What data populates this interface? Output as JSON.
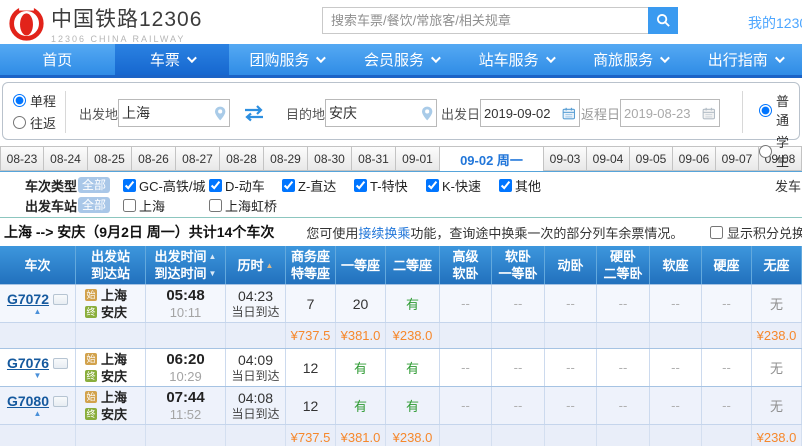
{
  "header": {
    "logo_title": "中国铁路12306",
    "logo_subtitle": "12306 CHINA RAILWAY",
    "search_placeholder": "搜索车票/餐饮/常旅客/相关规章",
    "my_account": "我的12306"
  },
  "nav": {
    "items": [
      {
        "label": "首页",
        "dropdown": false,
        "active": false
      },
      {
        "label": "车票",
        "dropdown": true,
        "active": true
      },
      {
        "label": "团购服务",
        "dropdown": true,
        "active": false
      },
      {
        "label": "会员服务",
        "dropdown": true,
        "active": false
      },
      {
        "label": "站车服务",
        "dropdown": true,
        "active": false
      },
      {
        "label": "商旅服务",
        "dropdown": true,
        "active": false
      },
      {
        "label": "出行指南",
        "dropdown": true,
        "active": false
      }
    ]
  },
  "form": {
    "trip_types": [
      {
        "label": "单程",
        "checked": true
      },
      {
        "label": "往返",
        "checked": false
      }
    ],
    "from_label": "出发地",
    "from_value": "上海",
    "to_label": "目的地",
    "to_value": "安庆",
    "depart_label": "出发日",
    "depart_value": "2019-09-02",
    "return_label": "返程日",
    "return_value": "2019-08-23",
    "ticket_types": [
      {
        "label": "普通",
        "checked": true
      },
      {
        "label": "学生",
        "checked": false
      }
    ]
  },
  "date_tabs": [
    {
      "label": "08-23",
      "active": false
    },
    {
      "label": "08-24",
      "active": false
    },
    {
      "label": "08-25",
      "active": false
    },
    {
      "label": "08-26",
      "active": false
    },
    {
      "label": "08-27",
      "active": false
    },
    {
      "label": "08-28",
      "active": false
    },
    {
      "label": "08-29",
      "active": false
    },
    {
      "label": "08-30",
      "active": false
    },
    {
      "label": "08-31",
      "active": false
    },
    {
      "label": "09-01",
      "active": false
    },
    {
      "label": "09-02 周一",
      "active": true
    },
    {
      "label": "09-03",
      "active": false
    },
    {
      "label": "09-04",
      "active": false
    },
    {
      "label": "09-05",
      "active": false
    },
    {
      "label": "09-06",
      "active": false
    },
    {
      "label": "09-07",
      "active": false
    },
    {
      "label": "09-08",
      "active": false
    }
  ],
  "filters": [
    {
      "label": "车次类型",
      "all": "全部",
      "right_text": "发车",
      "options": [
        {
          "label": "GC-高铁/城",
          "checked": true
        },
        {
          "label": "D-动车",
          "checked": true
        },
        {
          "label": "Z-直达",
          "checked": true
        },
        {
          "label": "T-特快",
          "checked": true
        },
        {
          "label": "K-快速",
          "checked": true
        },
        {
          "label": "其他",
          "checked": true
        }
      ]
    },
    {
      "label": "出发车站",
      "all": "全部",
      "right_text": "",
      "options": [
        {
          "label": "上海",
          "checked": false
        },
        {
          "label": "上海虹桥",
          "checked": false
        }
      ]
    }
  ],
  "summary": {
    "route_text": "上海 --> 安庆（9月2日  周一）共计14个车次",
    "tip_before": "您可使用",
    "tip_link": "接续换乘",
    "tip_after": "功能，查询途中换乘一次的部分列车余票情况。",
    "points_label": "显示积分兑换车次"
  },
  "table": {
    "badge_start": "始",
    "badge_end": "终",
    "columns": [
      {
        "l1": "车次",
        "l2": "",
        "sort1": "",
        "sort2": ""
      },
      {
        "l1": "出发站",
        "l2": "到达站",
        "sort1": "",
        "sort2": ""
      },
      {
        "l1": "出发时间",
        "l2": "到达时间",
        "sort1": "▲",
        "sort2": "▼"
      },
      {
        "l1": "历时",
        "l2": "",
        "sort1": "▲",
        "sort2": ""
      },
      {
        "l1": "商务座",
        "l2": "特等座",
        "sort1": "",
        "sort2": ""
      },
      {
        "l1": "一等座",
        "l2": "",
        "sort1": "",
        "sort2": ""
      },
      {
        "l1": "二等座",
        "l2": "",
        "sort1": "",
        "sort2": ""
      },
      {
        "l1": "高级",
        "l2": "软卧",
        "sort1": "",
        "sort2": ""
      },
      {
        "l1": "软卧",
        "l2": "一等卧",
        "sort1": "",
        "sort2": ""
      },
      {
        "l1": "动卧",
        "l2": "",
        "sort1": "",
        "sort2": ""
      },
      {
        "l1": "硬卧",
        "l2": "二等卧",
        "sort1": "",
        "sort2": ""
      },
      {
        "l1": "软座",
        "l2": "",
        "sort1": "",
        "sort2": ""
      },
      {
        "l1": "硬座",
        "l2": "",
        "sort1": "",
        "sort2": ""
      },
      {
        "l1": "无座",
        "l2": "",
        "sort1": "",
        "sort2": ""
      }
    ],
    "rows": [
      {
        "code": "G7072",
        "arrow": "up",
        "from": "上海",
        "to": "安庆",
        "dep": "05:48",
        "arr": "10:11",
        "dur": "04:23",
        "day": "当日到达",
        "seats": [
          "7",
          "20",
          "有",
          "--",
          "--",
          "--",
          "--",
          "--",
          "--",
          "无"
        ],
        "prices": [
          "¥737.5",
          "¥381.0",
          "¥238.0",
          "",
          "",
          "",
          "",
          "",
          "",
          "¥238.0"
        ]
      },
      {
        "code": "G7076",
        "arrow": "down",
        "from": "上海",
        "to": "安庆",
        "dep": "06:20",
        "arr": "10:29",
        "dur": "04:09",
        "day": "当日到达",
        "seats": [
          "12",
          "有",
          "有",
          "--",
          "--",
          "--",
          "--",
          "--",
          "--",
          "无"
        ],
        "prices": null
      },
      {
        "code": "G7080",
        "arrow": "up",
        "from": "上海",
        "to": "安庆",
        "dep": "07:44",
        "arr": "11:52",
        "dur": "04:08",
        "day": "当日到达",
        "seats": [
          "12",
          "有",
          "有",
          "--",
          "--",
          "--",
          "--",
          "--",
          "--",
          "无"
        ],
        "prices": [
          "¥737.5",
          "¥381.0",
          "¥238.0",
          "",
          "",
          "",
          "",
          "",
          "",
          "¥238.0"
        ]
      }
    ]
  },
  "colors": {
    "nav_blue": "#3e9bf0",
    "active_tab_blue": "#2176d9",
    "link_blue": "#2176d9",
    "available_green": "#2e9b33",
    "price_orange": "#f6882c",
    "table_header_blue": "#2f86cf",
    "logo_red": "#e2231a"
  }
}
